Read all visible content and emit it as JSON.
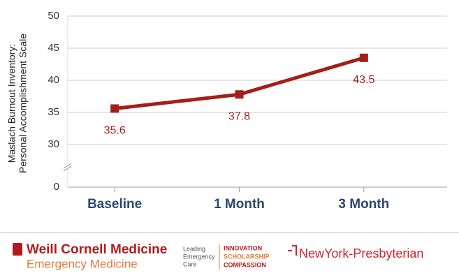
{
  "chart_data": {
    "type": "line",
    "y_label": [
      "Maslach Burnout Inventory:",
      "Personal Accomplishment Scale"
    ],
    "categories": [
      "Baseline",
      "1 Month",
      "3 Month"
    ],
    "series": [
      {
        "name": "Personal Accomplishment",
        "color": "#a31f1a",
        "values": [
          35.6,
          37.8,
          43.5
        ]
      }
    ],
    "ylim": [
      0,
      50
    ],
    "yticks": [
      0,
      30,
      35,
      40,
      45,
      50
    ],
    "axis_break": true,
    "grid": true
  },
  "footer": {
    "wcm": "Weill Cornell Medicine",
    "dept": "Emergency Medicine",
    "tagline": [
      "Leading",
      "Emergency",
      "Care"
    ],
    "values": [
      "INNOVATION",
      "SCHOLARSHIP",
      "COMPASSION"
    ],
    "nyp": "NewYork-Presbyterian"
  }
}
